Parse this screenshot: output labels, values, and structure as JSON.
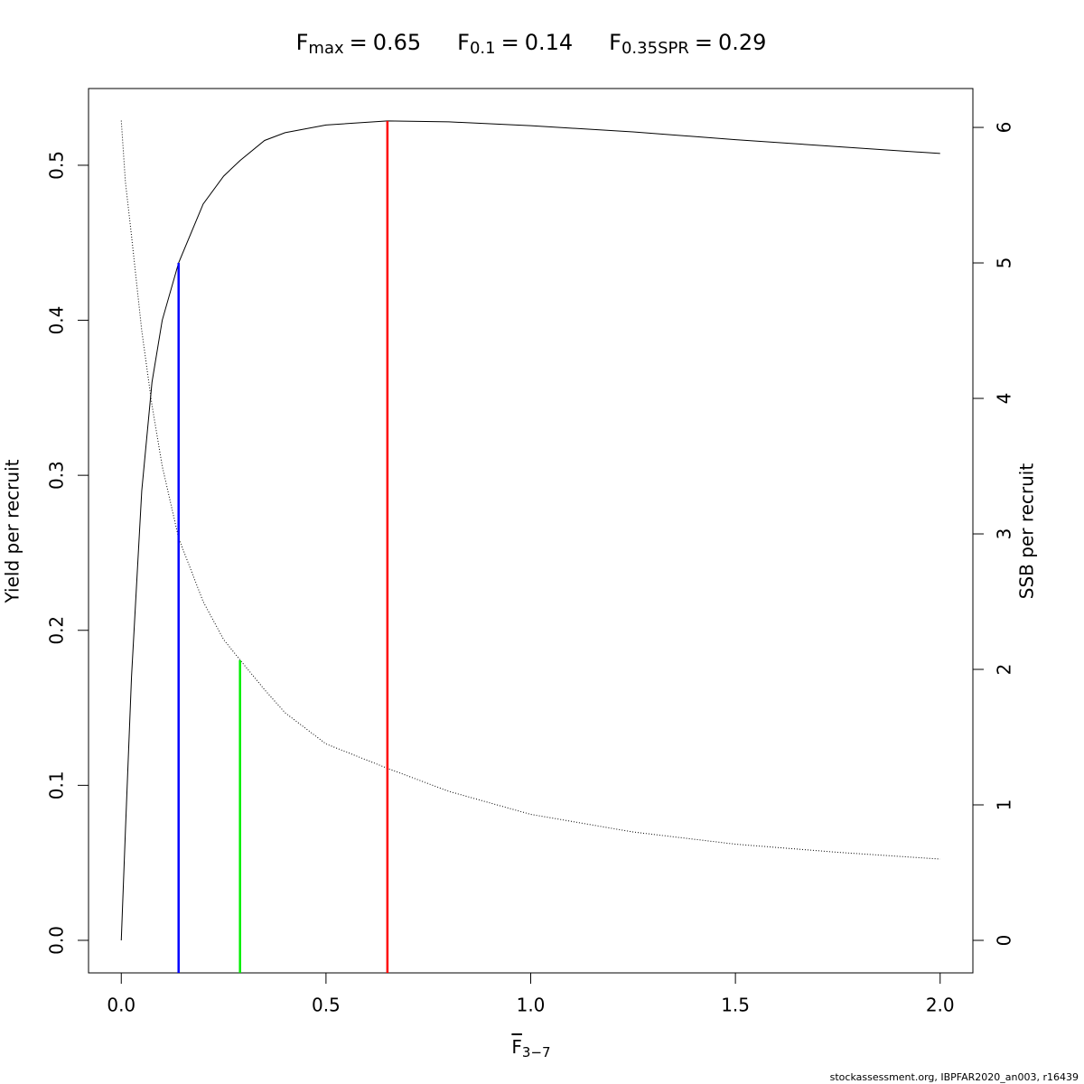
{
  "chart_data": {
    "type": "line",
    "reference_lines": [
      {
        "name": "F",
        "subscript": "max",
        "value": 0.65,
        "height": 0.5286,
        "color": "#ff0000"
      },
      {
        "name": "F",
        "subscript": "0.1",
        "value": 0.14,
        "height": 0.437,
        "color": "#0000ff"
      },
      {
        "name": "F",
        "subscript": "0.35SPR",
        "value": 0.29,
        "height": 0.1807,
        "color": "#00ee00"
      }
    ],
    "title_separator": "=",
    "x_label": {
      "text": "F",
      "subscript": "3−7"
    },
    "y_label": "Yield per recruit",
    "y2_label": "SSB per recruit",
    "footer": "stockassessment.org, IBPFAR2020_an003, r16439",
    "x": [
      0,
      0.01,
      0.025,
      0.05,
      0.075,
      0.1,
      0.14,
      0.2,
      0.25,
      0.29,
      0.35,
      0.4,
      0.5,
      0.65,
      0.8,
      1.0,
      1.25,
      1.5,
      1.75,
      2.0
    ],
    "series": [
      {
        "color": "#000000",
        "style": "solid",
        "values": [
          0,
          0.07,
          0.17,
          0.29,
          0.36,
          0.4,
          0.437,
          0.475,
          0.493,
          0.503,
          0.516,
          0.521,
          0.526,
          0.5286,
          0.528,
          0.5255,
          0.5215,
          0.5165,
          0.512,
          0.5076
        ]
      },
      {
        "color": "#000000",
        "style": "dotted",
        "axis": "y2",
        "values": [
          6.05,
          5.6,
          5.2,
          4.5,
          3.95,
          3.5,
          2.97,
          2.5,
          2.22,
          2.07,
          1.85,
          1.68,
          1.45,
          1.27,
          1.1,
          0.93,
          0.8,
          0.71,
          0.65,
          0.6
        ]
      }
    ],
    "xlim": [
      -0.08,
      2.08
    ],
    "xticks": [
      {
        "value": 0,
        "label": "0.0"
      },
      0.5,
      {
        "value": 1,
        "label": "1.0"
      },
      1.5,
      {
        "value": 2,
        "label": "2.0"
      }
    ],
    "ylim": [
      -0.021,
      0.5495
    ],
    "yticks": [
      {
        "value": 0,
        "label": "0.0"
      },
      0.1,
      0.2,
      0.3,
      0.4,
      0.5
    ],
    "y2lim": [
      -0.24,
      6.287
    ],
    "y2ticks": [
      0,
      1,
      2,
      3,
      4,
      5,
      6
    ]
  }
}
